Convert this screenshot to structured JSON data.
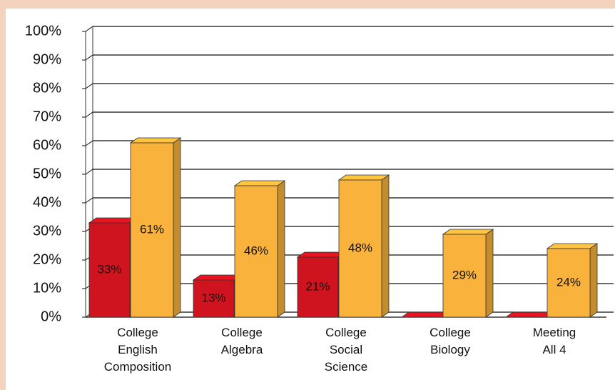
{
  "chart_data": {
    "type": "bar3d",
    "categories": [
      "College\nEnglish\nComposition",
      "College\nAlgebra",
      "College\nSocial\nScience",
      "College\nBiology",
      "Meeting\nAll 4"
    ],
    "series": [
      {
        "color": "#d0141f",
        "values": [
          33,
          13,
          21,
          0,
          0
        ],
        "value_labels": [
          "33%",
          "13%",
          "21%",
          null,
          null
        ]
      },
      {
        "color": "#f9b33c",
        "values": [
          61,
          46,
          48,
          29,
          24
        ],
        "value_labels": [
          "61%",
          "46%",
          "48%",
          "29%",
          "24%"
        ]
      }
    ],
    "ylim": [
      0,
      100
    ],
    "yticks": [
      {
        "value": 0,
        "label": "0%"
      },
      {
        "value": 10,
        "label": "10%"
      },
      {
        "value": 20,
        "label": "20%"
      },
      {
        "value": 30,
        "label": "30%"
      },
      {
        "value": 40,
        "label": "40%"
      },
      {
        "value": 50,
        "label": "50%"
      },
      {
        "value": 60,
        "label": "60%"
      },
      {
        "value": 70,
        "label": "70%"
      },
      {
        "value": 80,
        "label": "80%"
      },
      {
        "value": 90,
        "label": "90%"
      },
      {
        "value": 100,
        "label": "100%"
      }
    ],
    "grid": true
  }
}
